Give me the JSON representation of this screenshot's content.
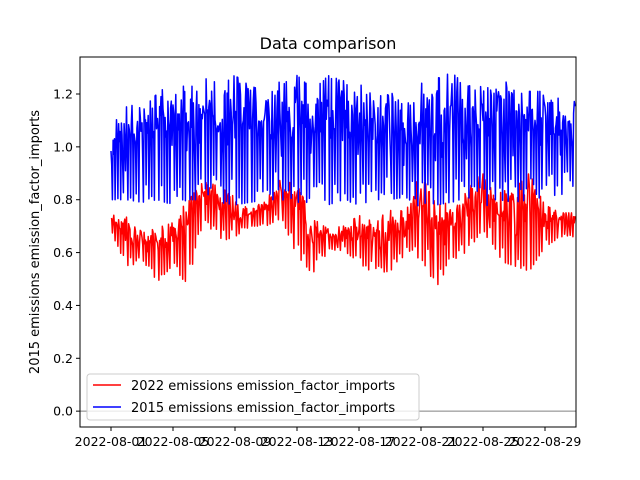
{
  "chart_data": {
    "type": "line",
    "title": "Data comparison",
    "xlabel": "",
    "ylabel": "2015 emissions emission_factor_imports",
    "x_ticks": [
      "2022-08-01",
      "2022-08-05",
      "2022-08-09",
      "2022-08-13",
      "2022-08-17",
      "2022-08-21",
      "2022-08-25",
      "2022-08-29"
    ],
    "xlim": [
      "2022-07-30",
      "2022-08-31"
    ],
    "y_ticks": [
      "0.0",
      "0.2",
      "0.4",
      "0.6",
      "0.8",
      "1.0",
      "1.2"
    ],
    "ylim": [
      -0.06,
      1.34
    ],
    "reference_line": 0,
    "legend": {
      "placement": "lower-left"
    },
    "series": [
      {
        "name": "2022 emissions emission_factor_imports",
        "color": "#ff0000",
        "x": [
          "2022-08-01",
          "2022-08-02",
          "2022-08-03",
          "2022-08-04",
          "2022-08-05",
          "2022-08-06",
          "2022-08-07",
          "2022-08-08",
          "2022-08-09",
          "2022-08-10",
          "2022-08-11",
          "2022-08-12",
          "2022-08-13",
          "2022-08-14",
          "2022-08-15",
          "2022-08-16",
          "2022-08-17",
          "2022-08-18",
          "2022-08-19",
          "2022-08-20",
          "2022-08-21",
          "2022-08-22",
          "2022-08-23",
          "2022-08-24",
          "2022-08-25",
          "2022-08-26",
          "2022-08-27",
          "2022-08-28",
          "2022-08-29",
          "2022-08-30"
        ],
        "min": [
          0.68,
          0.55,
          0.56,
          0.49,
          0.55,
          0.47,
          0.73,
          0.64,
          0.66,
          0.7,
          0.7,
          0.73,
          0.59,
          0.52,
          0.6,
          0.61,
          0.56,
          0.52,
          0.53,
          0.58,
          0.58,
          0.47,
          0.57,
          0.6,
          0.69,
          0.57,
          0.55,
          0.53,
          0.62,
          0.66
        ],
        "max": [
          0.74,
          0.75,
          0.68,
          0.69,
          0.72,
          0.8,
          0.87,
          0.85,
          0.81,
          0.76,
          0.8,
          0.88,
          0.87,
          0.73,
          0.69,
          0.7,
          0.74,
          0.72,
          0.76,
          0.78,
          0.9,
          0.78,
          0.79,
          0.84,
          0.9,
          0.83,
          0.84,
          0.9,
          0.78,
          0.75
        ]
      },
      {
        "name": "2015 emissions emission_factor_imports",
        "color": "#0000ff",
        "x": [
          "2022-08-01",
          "2022-08-02",
          "2022-08-03",
          "2022-08-04",
          "2022-08-05",
          "2022-08-06",
          "2022-08-07",
          "2022-08-08",
          "2022-08-09",
          "2022-08-10",
          "2022-08-11",
          "2022-08-12",
          "2022-08-13",
          "2022-08-14",
          "2022-08-15",
          "2022-08-16",
          "2022-08-17",
          "2022-08-18",
          "2022-08-19",
          "2022-08-20",
          "2022-08-21",
          "2022-08-22",
          "2022-08-23",
          "2022-08-24",
          "2022-08-25",
          "2022-08-26",
          "2022-08-27",
          "2022-08-28",
          "2022-08-29",
          "2022-08-30"
        ],
        "min": [
          0.8,
          0.8,
          0.79,
          0.8,
          0.78,
          0.8,
          0.8,
          0.79,
          0.78,
          0.79,
          0.8,
          0.8,
          0.79,
          0.79,
          0.78,
          0.8,
          0.78,
          0.8,
          0.8,
          0.81,
          0.77,
          0.78,
          0.79,
          0.81,
          0.77,
          0.8,
          0.79,
          0.8,
          0.81,
          0.82
        ],
        "max": [
          1.07,
          1.16,
          1.15,
          1.2,
          1.25,
          1.22,
          1.26,
          1.24,
          1.27,
          1.23,
          1.21,
          1.25,
          1.27,
          1.22,
          1.27,
          1.25,
          1.24,
          1.19,
          1.21,
          1.15,
          1.24,
          1.26,
          1.28,
          1.23,
          1.24,
          1.24,
          1.25,
          1.21,
          1.21,
          1.18
        ]
      }
    ]
  }
}
